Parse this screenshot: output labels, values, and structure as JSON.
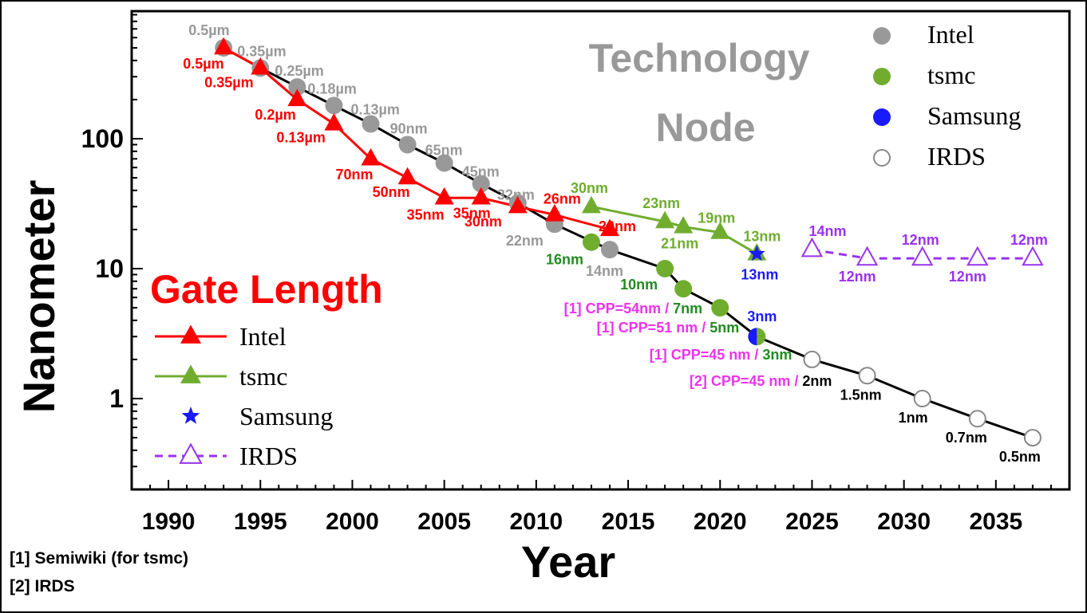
{
  "chart_data": {
    "type": "line",
    "title": "Technology Node",
    "subtitle": "Gate Length",
    "xlabel": "Year",
    "ylabel": "Nanometer",
    "xlim": [
      1988,
      2039
    ],
    "ylim": [
      0.2,
      1000
    ],
    "yscale": "log",
    "x_ticks": [
      "1990",
      "1995",
      "2000",
      "2005",
      "2010",
      "2015",
      "2020",
      "2025",
      "2030",
      "2035"
    ],
    "y_ticks": [
      "1",
      "10",
      "100"
    ],
    "grid": false,
    "colors": {
      "intel_gate": "#ff0000",
      "tsmc_gate": "#70ad2f",
      "samsung": "#1a1aff",
      "irds_gate": "#9933ee",
      "intel_node": "#999999",
      "tsmc_node": "#70ad2f",
      "irds_node": "#ffffff",
      "node_line": "#000000",
      "cpp_note": "#ee33ee",
      "tsmc_label_dark": "#228b22"
    },
    "technology_node_legend": {
      "placement": "top-right",
      "entries": [
        {
          "name": "Intel",
          "marker": "filled-circle",
          "color": "#999999"
        },
        {
          "name": "tsmc",
          "marker": "filled-circle",
          "color": "#70ad2f"
        },
        {
          "name": "Samsung",
          "marker": "filled-circle",
          "color": "#1a1aff"
        },
        {
          "name": "IRDS",
          "marker": "open-circle",
          "color": "#ffffff"
        }
      ]
    },
    "gate_length_legend": {
      "placement": "center-left",
      "entries": [
        {
          "name": "Intel",
          "marker": "filled-triangle-line",
          "color": "#ff0000"
        },
        {
          "name": "tsmc",
          "marker": "filled-triangle-line",
          "color": "#70ad2f"
        },
        {
          "name": "Samsung",
          "marker": "star",
          "color": "#1a1aff"
        },
        {
          "name": "IRDS",
          "marker": "open-triangle-dashed",
          "color": "#9933ee"
        }
      ]
    },
    "series": [
      {
        "name": "Intel",
        "group": "Technology Node",
        "points": [
          {
            "x": 1993,
            "y": 500,
            "label": "0.5µm"
          },
          {
            "x": 1995,
            "y": 350,
            "label": "0.35µm"
          },
          {
            "x": 1997,
            "y": 250,
            "label": "0.25µm"
          },
          {
            "x": 1999,
            "y": 180,
            "label": "0.18µm"
          },
          {
            "x": 2001,
            "y": 130,
            "label": "0.13µm"
          },
          {
            "x": 2003,
            "y": 90,
            "label": "90nm"
          },
          {
            "x": 2005,
            "y": 65,
            "label": "65nm"
          },
          {
            "x": 2007,
            "y": 45,
            "label": "45nm"
          },
          {
            "x": 2009,
            "y": 32,
            "label": "32nm"
          },
          {
            "x": 2011,
            "y": 22,
            "label": "22nm"
          },
          {
            "x": 2014,
            "y": 14,
            "label": "14nm"
          }
        ]
      },
      {
        "name": "tsmc",
        "group": "Technology Node",
        "points": [
          {
            "x": 2013,
            "y": 16,
            "label": "16nm"
          },
          {
            "x": 2017,
            "y": 10,
            "label": "10nm"
          },
          {
            "x": 2018,
            "y": 7,
            "label": "7nm",
            "note": "[1] CPP=54nm / "
          },
          {
            "x": 2020,
            "y": 5,
            "label": "5nm",
            "note": "[1] CPP=51 nm / "
          },
          {
            "x": 2022,
            "y": 3,
            "label": "3nm",
            "note": "[1] CPP=45 nm / "
          }
        ]
      },
      {
        "name": "Samsung",
        "group": "Technology Node",
        "points": [
          {
            "x": 2022,
            "y": 3,
            "label": "3nm"
          }
        ]
      },
      {
        "name": "IRDS",
        "group": "Technology Node",
        "points": [
          {
            "x": 2025,
            "y": 2,
            "label": "2nm",
            "note": "[2] CPP=45 nm / "
          },
          {
            "x": 2028,
            "y": 1.5,
            "label": "1.5nm"
          },
          {
            "x": 2031,
            "y": 1,
            "label": "1nm"
          },
          {
            "x": 2034,
            "y": 0.7,
            "label": "0.7nm"
          },
          {
            "x": 2037,
            "y": 0.5,
            "label": "0.5nm"
          }
        ]
      },
      {
        "name": "Intel",
        "group": "Gate Length",
        "points": [
          {
            "x": 1993,
            "y": 500,
            "label": "0.5µm"
          },
          {
            "x": 1995,
            "y": 350,
            "label": "0.35µm"
          },
          {
            "x": 1997,
            "y": 200,
            "label": "0.2µm"
          },
          {
            "x": 1999,
            "y": 130,
            "label": "0.13µm"
          },
          {
            "x": 2001,
            "y": 70,
            "label": "70nm"
          },
          {
            "x": 2003,
            "y": 50,
            "label": "50nm"
          },
          {
            "x": 2005,
            "y": 35,
            "label": "35nm"
          },
          {
            "x": 2007,
            "y": 35,
            "label": "35nm"
          },
          {
            "x": 2009,
            "y": 30,
            "label": "30nm"
          },
          {
            "x": 2011,
            "y": 26,
            "label": "26nm"
          },
          {
            "x": 2014,
            "y": 20,
            "label": "20nm"
          }
        ]
      },
      {
        "name": "tsmc",
        "group": "Gate Length",
        "points": [
          {
            "x": 2013,
            "y": 30,
            "label": "30nm"
          },
          {
            "x": 2017,
            "y": 23,
            "label": "23nm"
          },
          {
            "x": 2018,
            "y": 21,
            "label": "21nm"
          },
          {
            "x": 2020,
            "y": 19,
            "label": "19nm"
          },
          {
            "x": 2022,
            "y": 13,
            "label": "13nm"
          }
        ]
      },
      {
        "name": "Samsung",
        "group": "Gate Length",
        "points": [
          {
            "x": 2022,
            "y": 13,
            "label": "13nm"
          }
        ]
      },
      {
        "name": "IRDS",
        "group": "Gate Length",
        "points": [
          {
            "x": 2025,
            "y": 14,
            "label": "14nm"
          },
          {
            "x": 2028,
            "y": 12,
            "label": "12nm"
          },
          {
            "x": 2031,
            "y": 12,
            "label": "12nm"
          },
          {
            "x": 2034,
            "y": 12,
            "label": "12nm"
          },
          {
            "x": 2037,
            "y": 12,
            "label": "12nm"
          }
        ]
      }
    ],
    "footnotes": [
      "[1] Semiwiki (for tsmc)",
      "[2] IRDS"
    ]
  }
}
